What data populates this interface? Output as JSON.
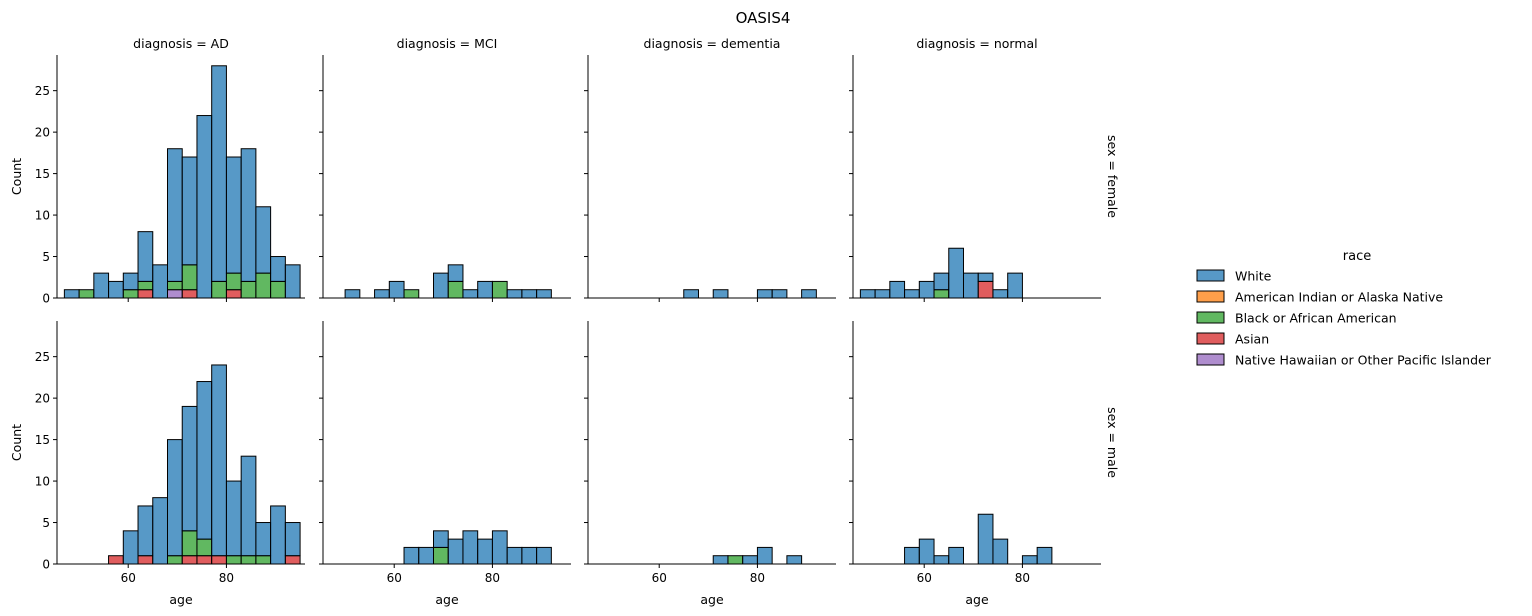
{
  "chart_data": {
    "type": "bar",
    "title": "OASIS4",
    "layout": "facet-grid stacked histogram",
    "xlabel": "age",
    "ylabel": "Count",
    "xlim": [
      45.5,
      96
    ],
    "ylim": [
      0,
      29.3
    ],
    "xticks": [
      60,
      80
    ],
    "yticks": [
      0,
      5,
      10,
      15,
      20,
      25
    ],
    "bin_edges": [
      47,
      50,
      53,
      56,
      59,
      62,
      65,
      68,
      71,
      74,
      77,
      80,
      83,
      86,
      89,
      92,
      95
    ],
    "col_labels": [
      "diagnosis = AD",
      "diagnosis = MCI",
      "diagnosis = dementia",
      "diagnosis = normal"
    ],
    "row_labels": [
      "sex = female",
      "sex = male"
    ],
    "legend": {
      "title": "race",
      "position": "right",
      "entries": [
        {
          "name": "White",
          "color": "#1f77b4"
        },
        {
          "name": "American Indian or Alaska Native",
          "color": "#ff7f0e"
        },
        {
          "name": "Black or African American",
          "color": "#2ca02c"
        },
        {
          "name": "Asian",
          "color": "#d62728"
        },
        {
          "name": "Native Hawaiian or Other Pacific Islander",
          "color": "#9467bd"
        }
      ]
    },
    "panels": [
      {
        "row": 0,
        "col": 0,
        "series": [
          {
            "name": "White",
            "values": [
              1,
              0,
              3,
              2,
              2,
              6,
              4,
              16,
              13,
              22,
              26,
              14,
              16,
              8,
              3,
              4
            ]
          },
          {
            "name": "American Indian or Alaska Native",
            "values": [
              0,
              0,
              0,
              0,
              0,
              0,
              0,
              0,
              0,
              0,
              0,
              0,
              0,
              0,
              0,
              0
            ]
          },
          {
            "name": "Black or African American",
            "values": [
              0,
              1,
              0,
              0,
              1,
              1,
              0,
              1,
              3,
              0,
              2,
              2,
              2,
              3,
              2,
              0
            ]
          },
          {
            "name": "Asian",
            "values": [
              0,
              0,
              0,
              0,
              0,
              1,
              0,
              0,
              1,
              0,
              0,
              1,
              0,
              0,
              0,
              0
            ]
          },
          {
            "name": "Native Hawaiian or Other Pacific Islander",
            "values": [
              0,
              0,
              0,
              0,
              0,
              0,
              0,
              1,
              0,
              0,
              0,
              0,
              0,
              0,
              0,
              0
            ]
          }
        ]
      },
      {
        "row": 0,
        "col": 1,
        "series": [
          {
            "name": "White",
            "values": [
              0,
              1,
              0,
              1,
              2,
              0,
              0,
              3,
              2,
              1,
              2,
              0,
              1,
              1,
              1,
              0
            ]
          },
          {
            "name": "American Indian or Alaska Native",
            "values": [
              0,
              0,
              0,
              0,
              0,
              0,
              0,
              0,
              0,
              0,
              0,
              0,
              0,
              0,
              0,
              0
            ]
          },
          {
            "name": "Black or African American",
            "values": [
              0,
              0,
              0,
              0,
              0,
              1,
              0,
              0,
              2,
              0,
              0,
              2,
              0,
              0,
              0,
              0
            ]
          },
          {
            "name": "Asian",
            "values": [
              0,
              0,
              0,
              0,
              0,
              0,
              0,
              0,
              0,
              0,
              0,
              0,
              0,
              0,
              0,
              0
            ]
          },
          {
            "name": "Native Hawaiian or Other Pacific Islander",
            "values": [
              0,
              0,
              0,
              0,
              0,
              0,
              0,
              0,
              0,
              0,
              0,
              0,
              0,
              0,
              0,
              0
            ]
          }
        ]
      },
      {
        "row": 0,
        "col": 2,
        "series": [
          {
            "name": "White",
            "values": [
              0,
              0,
              0,
              0,
              0,
              0,
              1,
              0,
              1,
              0,
              0,
              1,
              1,
              0,
              1,
              0
            ]
          },
          {
            "name": "American Indian or Alaska Native",
            "values": [
              0,
              0,
              0,
              0,
              0,
              0,
              0,
              0,
              0,
              0,
              0,
              0,
              0,
              0,
              0,
              0
            ]
          },
          {
            "name": "Black or African American",
            "values": [
              0,
              0,
              0,
              0,
              0,
              0,
              0,
              0,
              0,
              0,
              0,
              0,
              0,
              0,
              0,
              0
            ]
          },
          {
            "name": "Asian",
            "values": [
              0,
              0,
              0,
              0,
              0,
              0,
              0,
              0,
              0,
              0,
              0,
              0,
              0,
              0,
              0,
              0
            ]
          },
          {
            "name": "Native Hawaiian or Other Pacific Islander",
            "values": [
              0,
              0,
              0,
              0,
              0,
              0,
              0,
              0,
              0,
              0,
              0,
              0,
              0,
              0,
              0,
              0
            ]
          }
        ]
      },
      {
        "row": 0,
        "col": 3,
        "series": [
          {
            "name": "White",
            "values": [
              1,
              1,
              2,
              1,
              2,
              2,
              6,
              3,
              1,
              1,
              3,
              0,
              0,
              0,
              0,
              0
            ]
          },
          {
            "name": "American Indian or Alaska Native",
            "values": [
              0,
              0,
              0,
              0,
              0,
              0,
              0,
              0,
              0,
              0,
              0,
              0,
              0,
              0,
              0,
              0
            ]
          },
          {
            "name": "Black or African American",
            "values": [
              0,
              0,
              0,
              0,
              0,
              1,
              0,
              0,
              0,
              0,
              0,
              0,
              0,
              0,
              0,
              0
            ]
          },
          {
            "name": "Asian",
            "values": [
              0,
              0,
              0,
              0,
              0,
              0,
              0,
              0,
              2,
              0,
              0,
              0,
              0,
              0,
              0,
              0
            ]
          },
          {
            "name": "Native Hawaiian or Other Pacific Islander",
            "values": [
              0,
              0,
              0,
              0,
              0,
              0,
              0,
              0,
              0,
              0,
              0,
              0,
              0,
              0,
              0,
              0
            ]
          }
        ]
      },
      {
        "row": 1,
        "col": 0,
        "series": [
          {
            "name": "White",
            "values": [
              0,
              0,
              0,
              0,
              4,
              6,
              8,
              14,
              15,
              19,
              23,
              9,
              12,
              4,
              7,
              4
            ]
          },
          {
            "name": "American Indian or Alaska Native",
            "values": [
              0,
              0,
              0,
              0,
              0,
              0,
              0,
              0,
              0,
              0,
              0,
              0,
              0,
              0,
              0,
              0
            ]
          },
          {
            "name": "Black or African American",
            "values": [
              0,
              0,
              0,
              0,
              0,
              0,
              0,
              1,
              3,
              2,
              0,
              1,
              1,
              1,
              0,
              0
            ]
          },
          {
            "name": "Asian",
            "values": [
              0,
              0,
              0,
              1,
              0,
              1,
              0,
              0,
              1,
              1,
              1,
              0,
              0,
              0,
              0,
              1
            ]
          },
          {
            "name": "Native Hawaiian or Other Pacific Islander",
            "values": [
              0,
              0,
              0,
              0,
              0,
              0,
              0,
              0,
              0,
              0,
              0,
              0,
              0,
              0,
              0,
              0
            ]
          }
        ]
      },
      {
        "row": 1,
        "col": 1,
        "series": [
          {
            "name": "White",
            "values": [
              0,
              0,
              0,
              0,
              0,
              2,
              2,
              2,
              3,
              4,
              3,
              4,
              2,
              2,
              2,
              0
            ]
          },
          {
            "name": "American Indian or Alaska Native",
            "values": [
              0,
              0,
              0,
              0,
              0,
              0,
              0,
              0,
              0,
              0,
              0,
              0,
              0,
              0,
              0,
              0
            ]
          },
          {
            "name": "Black or African American",
            "values": [
              0,
              0,
              0,
              0,
              0,
              0,
              0,
              2,
              0,
              0,
              0,
              0,
              0,
              0,
              0,
              0
            ]
          },
          {
            "name": "Asian",
            "values": [
              0,
              0,
              0,
              0,
              0,
              0,
              0,
              0,
              0,
              0,
              0,
              0,
              0,
              0,
              0,
              0
            ]
          },
          {
            "name": "Native Hawaiian or Other Pacific Islander",
            "values": [
              0,
              0,
              0,
              0,
              0,
              0,
              0,
              0,
              0,
              0,
              0,
              0,
              0,
              0,
              0,
              0
            ]
          }
        ]
      },
      {
        "row": 1,
        "col": 2,
        "series": [
          {
            "name": "White",
            "values": [
              0,
              0,
              0,
              0,
              0,
              0,
              0,
              0,
              1,
              0,
              1,
              2,
              0,
              1,
              0,
              0
            ]
          },
          {
            "name": "American Indian or Alaska Native",
            "values": [
              0,
              0,
              0,
              0,
              0,
              0,
              0,
              0,
              0,
              0,
              0,
              0,
              0,
              0,
              0,
              0
            ]
          },
          {
            "name": "Black or African American",
            "values": [
              0,
              0,
              0,
              0,
              0,
              0,
              0,
              0,
              0,
              1,
              0,
              0,
              0,
              0,
              0,
              0
            ]
          },
          {
            "name": "Asian",
            "values": [
              0,
              0,
              0,
              0,
              0,
              0,
              0,
              0,
              0,
              0,
              0,
              0,
              0,
              0,
              0,
              0
            ]
          },
          {
            "name": "Native Hawaiian or Other Pacific Islander",
            "values": [
              0,
              0,
              0,
              0,
              0,
              0,
              0,
              0,
              0,
              0,
              0,
              0,
              0,
              0,
              0,
              0
            ]
          }
        ]
      },
      {
        "row": 1,
        "col": 3,
        "series": [
          {
            "name": "White",
            "values": [
              0,
              0,
              0,
              2,
              3,
              1,
              2,
              0,
              6,
              3,
              0,
              1,
              2,
              0,
              0,
              0
            ]
          },
          {
            "name": "American Indian or Alaska Native",
            "values": [
              0,
              0,
              0,
              0,
              0,
              0,
              0,
              0,
              0,
              0,
              0,
              0,
              0,
              0,
              0,
              0
            ]
          },
          {
            "name": "Black or African American",
            "values": [
              0,
              0,
              0,
              0,
              0,
              0,
              0,
              0,
              0,
              0,
              0,
              0,
              0,
              0,
              0,
              0
            ]
          },
          {
            "name": "Asian",
            "values": [
              0,
              0,
              0,
              0,
              0,
              0,
              0,
              0,
              0,
              0,
              0,
              0,
              0,
              0,
              0,
              0
            ]
          },
          {
            "name": "Native Hawaiian or Other Pacific Islander",
            "values": [
              0,
              0,
              0,
              0,
              0,
              0,
              0,
              0,
              0,
              0,
              0,
              0,
              0,
              0,
              0,
              0
            ]
          }
        ]
      }
    ]
  }
}
